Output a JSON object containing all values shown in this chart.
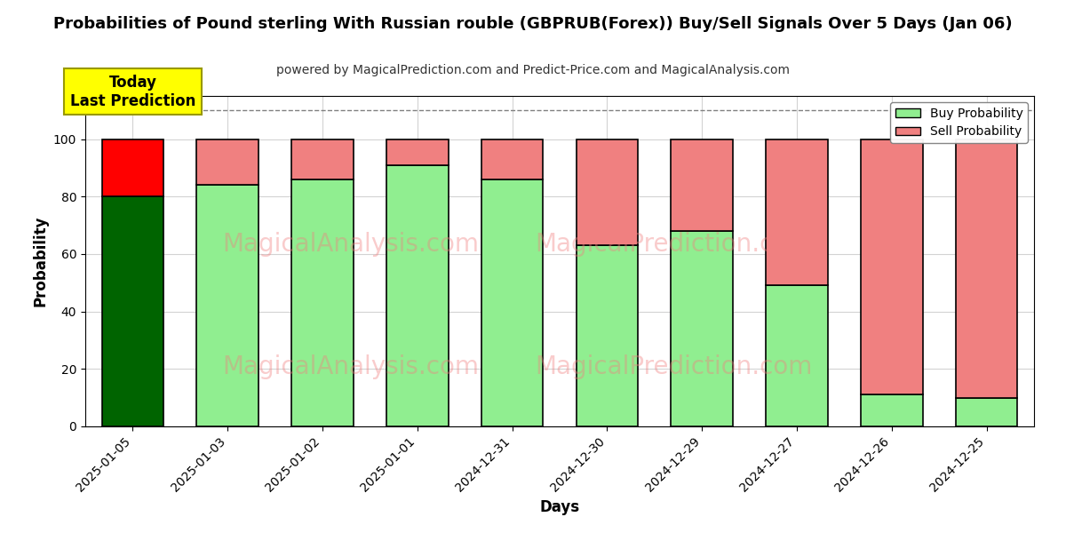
{
  "title": "Probabilities of Pound sterling With Russian rouble (GBPRUB(Forex)) Buy/Sell Signals Over 5 Days (Jan 06)",
  "subtitle": "powered by MagicalPrediction.com and Predict-Price.com and MagicalAnalysis.com",
  "xlabel": "Days",
  "ylabel": "Probability",
  "dates": [
    "2025-01-05",
    "2025-01-03",
    "2025-01-02",
    "2025-01-01",
    "2024-12-31",
    "2024-12-30",
    "2024-12-29",
    "2024-12-27",
    "2024-12-26",
    "2024-12-25"
  ],
  "buy_values": [
    80,
    84,
    86,
    91,
    86,
    63,
    68,
    49,
    11,
    10
  ],
  "sell_values": [
    20,
    16,
    14,
    9,
    14,
    37,
    32,
    51,
    89,
    90
  ],
  "first_bar_buy_color": "#006400",
  "first_bar_sell_color": "#ff0000",
  "buy_color": "#90EE90",
  "sell_color": "#F08080",
  "bar_edge_color": "#000000",
  "dashed_line_y": 110,
  "ylim": [
    0,
    115
  ],
  "yticks": [
    0,
    20,
    40,
    60,
    80,
    100
  ],
  "annotation_text": "Today\nLast Prediction",
  "annotation_bg": "#ffff00",
  "figsize": [
    12,
    6
  ],
  "dpi": 100
}
